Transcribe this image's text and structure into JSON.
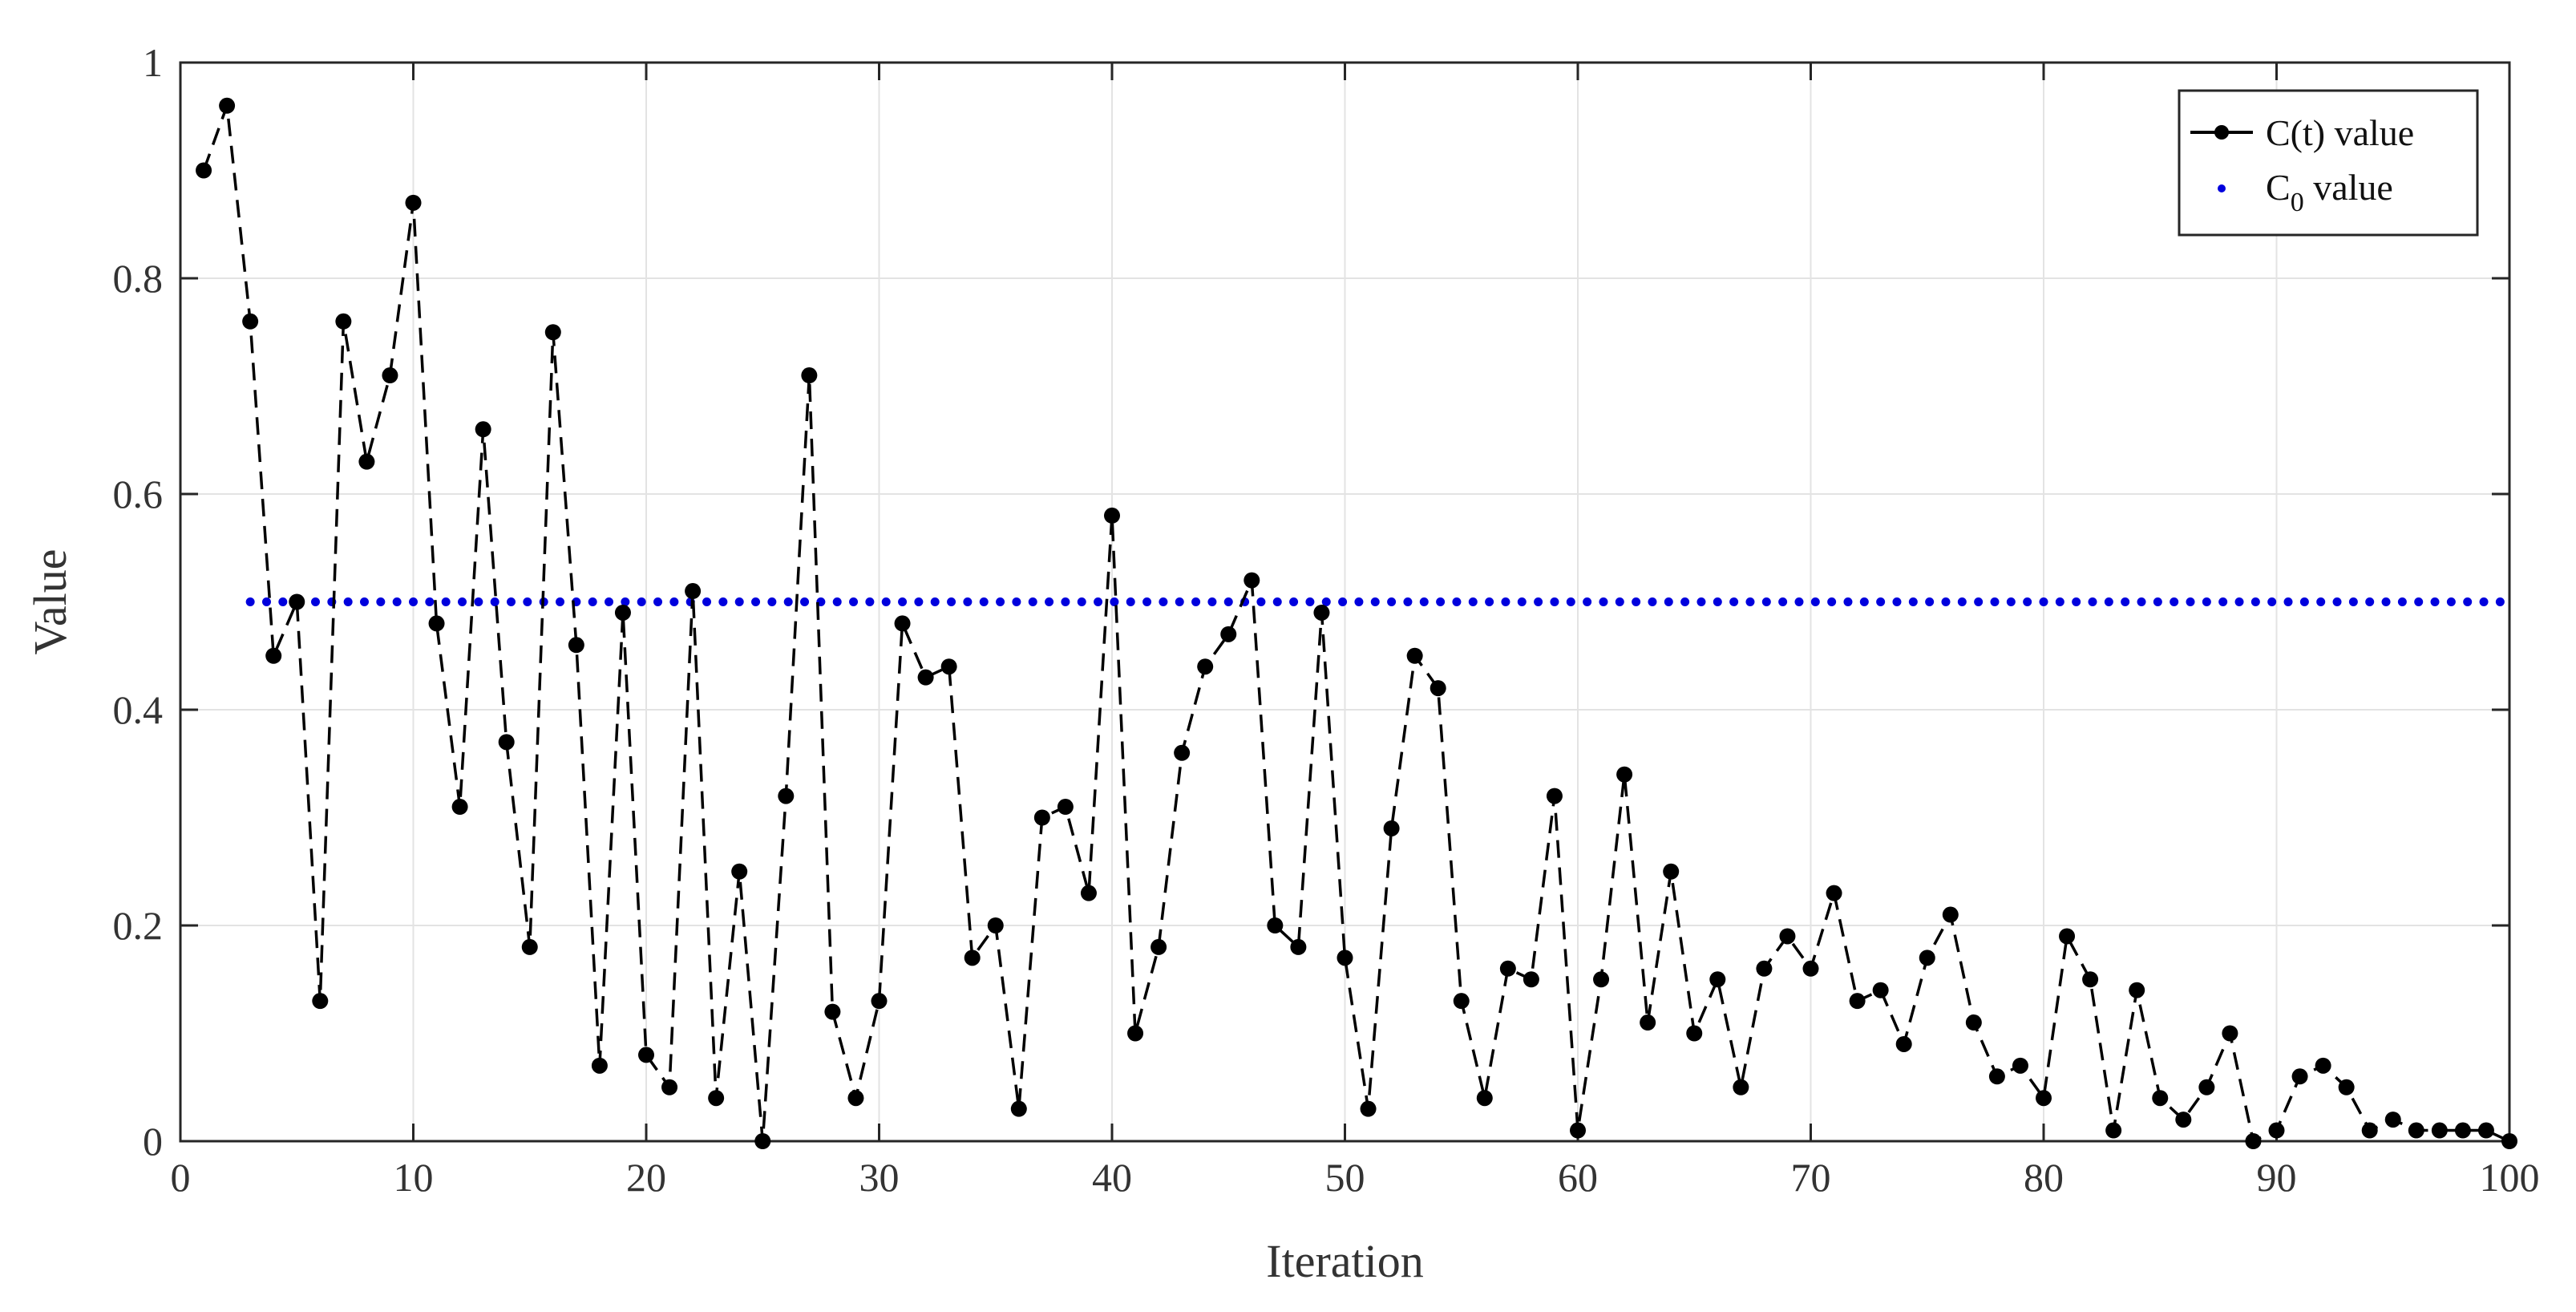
{
  "chart_data": {
    "type": "line",
    "xlabel": "Iteration",
    "ylabel": "Value",
    "xlim": [
      0,
      100
    ],
    "ylim": [
      0,
      1
    ],
    "x_ticks": [
      0,
      10,
      20,
      30,
      40,
      50,
      60,
      70,
      80,
      90,
      100
    ],
    "y_ticks": [
      0,
      0.2,
      0.4,
      0.6,
      0.8,
      1
    ],
    "y_tick_labels": [
      "0",
      "0.2",
      "0.4",
      "0.6",
      "0.8",
      "1"
    ],
    "grid": true,
    "legend_position": "top-right",
    "legend": {
      "ct_label": "C(t) value",
      "c0_main": "C",
      "c0_sub": "0",
      "c0_rest": " value"
    },
    "series": [
      {
        "name": "C(t) value",
        "style": "dashed-line-with-markers",
        "color": "#000000",
        "x": [
          1,
          2,
          3,
          4,
          5,
          6,
          7,
          8,
          9,
          10,
          11,
          12,
          13,
          14,
          15,
          16,
          17,
          18,
          19,
          20,
          21,
          22,
          23,
          24,
          25,
          26,
          27,
          28,
          29,
          30,
          31,
          32,
          33,
          34,
          35,
          36,
          37,
          38,
          39,
          40,
          41,
          42,
          43,
          44,
          45,
          46,
          47,
          48,
          49,
          50,
          51,
          52,
          53,
          54,
          55,
          56,
          57,
          58,
          59,
          60,
          61,
          62,
          63,
          64,
          65,
          66,
          67,
          68,
          69,
          70,
          71,
          72,
          73,
          74,
          75,
          76,
          77,
          78,
          79,
          80,
          81,
          82,
          83,
          84,
          85,
          86,
          87,
          88,
          89,
          90,
          91,
          92,
          93,
          94,
          95,
          96,
          97,
          98,
          99,
          100
        ],
        "values": [
          0.9,
          0.96,
          0.76,
          0.45,
          0.5,
          0.13,
          0.76,
          0.63,
          0.71,
          0.87,
          0.48,
          0.31,
          0.66,
          0.37,
          0.18,
          0.75,
          0.46,
          0.07,
          0.49,
          0.08,
          0.05,
          0.51,
          0.04,
          0.25,
          0.0,
          0.32,
          0.71,
          0.12,
          0.04,
          0.13,
          0.48,
          0.43,
          0.44,
          0.17,
          0.2,
          0.03,
          0.3,
          0.31,
          0.23,
          0.58,
          0.1,
          0.18,
          0.36,
          0.44,
          0.47,
          0.52,
          0.2,
          0.18,
          0.49,
          0.17,
          0.03,
          0.29,
          0.45,
          0.42,
          0.13,
          0.04,
          0.16,
          0.15,
          0.32,
          0.01,
          0.15,
          0.34,
          0.11,
          0.25,
          0.1,
          0.15,
          0.05,
          0.16,
          0.19,
          0.16,
          0.23,
          0.13,
          0.14,
          0.09,
          0.17,
          0.21,
          0.11,
          0.06,
          0.07,
          0.04,
          0.19,
          0.15,
          0.01,
          0.14,
          0.04,
          0.02,
          0.05,
          0.1,
          0.0,
          0.01,
          0.06,
          0.07,
          0.05,
          0.01,
          0.02,
          0.01,
          0.01,
          0.01,
          0.01,
          0.0
        ]
      },
      {
        "name": "C0 value",
        "style": "dotted",
        "color": "#0000dd",
        "x_range": [
          3,
          100
        ],
        "value": 0.5
      }
    ]
  }
}
